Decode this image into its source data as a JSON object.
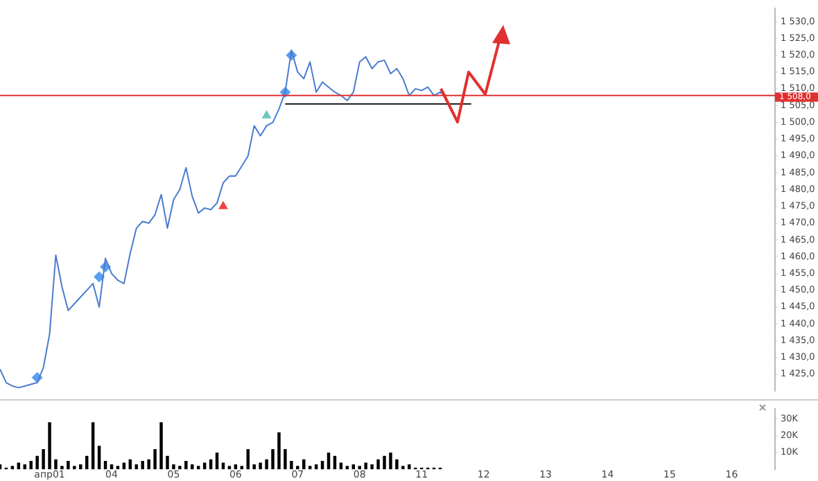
{
  "chart_data": [
    {
      "type": "line",
      "tick_labels": "y",
      "ylim": [
        1420,
        1534
      ],
      "yticks": [
        {
          "value": 1425,
          "label": "1 425,0"
        },
        {
          "value": 1430,
          "label": "1 430,0"
        },
        {
          "value": 1435,
          "label": "1 435,0"
        },
        {
          "value": 1440,
          "label": "1 440,0"
        },
        {
          "value": 1445,
          "label": "1 445,0"
        },
        {
          "value": 1450,
          "label": "1 450,0"
        },
        {
          "value": 1455,
          "label": "1 455,0"
        },
        {
          "value": 1460,
          "label": "1 460,0"
        },
        {
          "value": 1465,
          "label": "1 465,0"
        },
        {
          "value": 1470,
          "label": "1 470,0"
        },
        {
          "value": 1475,
          "label": "1 475,0"
        },
        {
          "value": 1480,
          "label": "1 480,0"
        },
        {
          "value": 1485,
          "label": "1 485,0"
        },
        {
          "value": 1490,
          "label": "1 490,0"
        },
        {
          "value": 1495,
          "label": "1 495,0"
        },
        {
          "value": 1500,
          "label": "1 500,0"
        },
        {
          "value": 1505,
          "label": "1 505,0"
        },
        {
          "value": 1510,
          "label": "1 510,0"
        },
        {
          "value": 1515,
          "label": "1 515,0"
        },
        {
          "value": 1520,
          "label": "1 520,0"
        },
        {
          "value": 1525,
          "label": "1 525,0"
        },
        {
          "value": 1530,
          "label": "1 530,0"
        }
      ],
      "series": [
        {
          "color": "#4a7bd0",
          "values": [
            1426.5,
            1422.5,
            1421.5,
            1421,
            1421.5,
            1422,
            1422.5,
            1427,
            1437,
            1460.5,
            1451,
            1444,
            1446,
            1448,
            1450,
            1452,
            1445,
            1459.5,
            1455,
            1453,
            1452,
            1461,
            1468.5,
            1470.5,
            1470,
            1472.5,
            1478.5,
            1468.5,
            1477,
            1480,
            1486.5,
            1478,
            1473,
            1474.5,
            1474,
            1476,
            1482,
            1484,
            1484,
            1487,
            1490,
            1499,
            1496,
            1499,
            1500,
            1504,
            1509,
            1521.5,
            1515,
            1513,
            1518,
            1509,
            1512,
            1510.5,
            1509,
            1508,
            1506.5,
            1509,
            1518,
            1519.5,
            1516,
            1518,
            1518.5,
            1514.5,
            1516,
            1513,
            1508,
            1510,
            1509.5,
            1510.5,
            1508,
            1509,
            1508,
            null,
            null,
            null,
            null,
            null,
            null,
            null,
            null,
            null,
            null,
            null,
            null,
            null,
            null,
            null,
            null,
            null,
            null,
            null,
            null,
            null,
            null,
            null,
            null,
            null,
            null,
            null,
            null,
            null,
            null,
            null,
            null,
            null,
            null,
            null,
            null,
            null,
            null,
            null,
            null,
            null,
            null,
            null,
            null,
            null,
            null,
            null,
            null,
            null,
            null,
            null,
            null,
            null
          ]
        },
        {
          "color": "#222222",
          "values": [
            null,
            null,
            null,
            null,
            null,
            null,
            null,
            null,
            null,
            null,
            null,
            null,
            null,
            null,
            null,
            null,
            null,
            null,
            null,
            null,
            null,
            null,
            null,
            null,
            null,
            null,
            null,
            null,
            null,
            null,
            null,
            null,
            null,
            null,
            null,
            null,
            null,
            null,
            null,
            null,
            null,
            null,
            null,
            null,
            null,
            null,
            1505.5,
            1505.5,
            1505.5,
            1505.5,
            1505.5,
            1505.5,
            1505.5,
            1505.5,
            1505.5,
            1505.5,
            1505.5,
            1505.5,
            1505.5,
            1505.5,
            1505.5,
            1505.5,
            1505.5,
            1505.5,
            1505.5,
            1505.5,
            1505.5,
            1505.5,
            1505.5,
            1505.5,
            1505.5,
            1505.5,
            1505.5,
            1505.5,
            1505.5,
            1505.5,
            1505.5,
            null,
            null,
            null,
            null,
            null,
            null,
            null,
            null,
            null,
            null,
            null,
            null,
            null,
            null,
            null,
            null,
            null,
            null,
            null,
            null,
            null,
            null,
            null,
            null,
            null,
            null,
            null,
            null,
            null,
            null,
            null,
            null,
            null,
            null,
            null,
            null,
            null,
            null,
            null,
            null,
            null,
            null,
            null,
            null,
            null,
            null,
            null,
            null,
            null
          ]
        },
        {
          "type": "scatter",
          "marker": "diamond",
          "color": "#5aa0f0",
          "values": [
            null,
            null,
            null,
            null,
            null,
            null,
            1424,
            null,
            null,
            null,
            null,
            null,
            null,
            null,
            null,
            null,
            1454,
            1457,
            null,
            null,
            null,
            null,
            null,
            null,
            null,
            null,
            null,
            null,
            null,
            null,
            null,
            null,
            null,
            null,
            null,
            null,
            null,
            null,
            null,
            null,
            null,
            null,
            null,
            null,
            null,
            null,
            1509,
            1520,
            null,
            null,
            null,
            null,
            null,
            null,
            null,
            null,
            null,
            null,
            null,
            null,
            null,
            null,
            null,
            null,
            null,
            null,
            null,
            null,
            null,
            null,
            null,
            null,
            null,
            null,
            null,
            null,
            null,
            null,
            null,
            null,
            null,
            null,
            null,
            null,
            null,
            null,
            null,
            null,
            null,
            null,
            null,
            null,
            null,
            null,
            null,
            null,
            null,
            null,
            null,
            null,
            null,
            null,
            null,
            null,
            null,
            null,
            null,
            null,
            null,
            null,
            null,
            null,
            null,
            null,
            null,
            null,
            null,
            null,
            null,
            null,
            null,
            null,
            null,
            null,
            null,
            null
          ]
        },
        {
          "type": "scatter",
          "marker": "triangle",
          "color": "#ee4444",
          "values": [
            null,
            null,
            null,
            null,
            null,
            null,
            null,
            null,
            null,
            null,
            null,
            null,
            null,
            null,
            null,
            null,
            null,
            null,
            null,
            null,
            null,
            null,
            null,
            null,
            null,
            null,
            null,
            null,
            null,
            null,
            null,
            null,
            null,
            null,
            null,
            null,
            1475,
            null,
            null,
            null,
            null,
            null,
            null,
            null,
            null,
            null,
            null,
            null,
            null,
            null,
            null,
            null,
            null,
            null,
            null,
            null,
            null,
            null,
            null,
            null,
            null,
            null,
            null,
            null,
            null,
            null,
            null,
            null,
            null,
            null,
            null,
            null,
            null,
            null,
            null,
            null,
            null,
            null,
            null,
            null,
            null,
            null,
            null,
            null,
            null,
            null,
            null,
            null,
            null,
            null,
            null,
            null,
            null,
            null,
            null,
            null,
            null,
            null,
            null,
            null,
            null,
            null,
            null,
            null,
            null,
            null,
            null,
            null,
            null,
            null,
            null,
            null,
            null,
            null,
            null,
            null,
            null,
            null,
            null,
            null,
            null,
            null,
            null,
            null,
            null,
            null
          ]
        },
        {
          "type": "scatter",
          "marker": "triangle",
          "color": "#6cc8c0",
          "values": [
            null,
            null,
            null,
            null,
            null,
            null,
            null,
            null,
            null,
            null,
            null,
            null,
            null,
            null,
            null,
            null,
            null,
            null,
            null,
            null,
            null,
            null,
            null,
            null,
            null,
            null,
            null,
            null,
            null,
            null,
            null,
            null,
            null,
            null,
            null,
            null,
            null,
            null,
            null,
            null,
            null,
            null,
            null,
            1502,
            null,
            null,
            null,
            null,
            null,
            null,
            null,
            null,
            null,
            null,
            null,
            null,
            null,
            null,
            null,
            null,
            null,
            null,
            null,
            null,
            null,
            null,
            null,
            null,
            null,
            null,
            null,
            null,
            null,
            null,
            null,
            null,
            null,
            null,
            null,
            null,
            null,
            null,
            null,
            null,
            null,
            null,
            null,
            null,
            null,
            null,
            null,
            null,
            null,
            null,
            null,
            null,
            null,
            null,
            null,
            null,
            null,
            null,
            null,
            null,
            null,
            null,
            null,
            null,
            null,
            null,
            null,
            null,
            null,
            null,
            null,
            null,
            null,
            null,
            null,
            null,
            null,
            null,
            null,
            null,
            null,
            null
          ]
        }
      ],
      "ref_lines": [
        {
          "axis": "y",
          "value": 1508,
          "label": "1 508,0",
          "color": "#e03030"
        }
      ]
    },
    {
      "type": "bar",
      "ylim": [
        0,
        36000
      ],
      "categories": [
        null,
        null,
        null,
        null,
        null,
        null,
        null,
        null,
        "апр01",
        null,
        null,
        null,
        null,
        null,
        null,
        null,
        null,
        null,
        "04",
        null,
        null,
        null,
        null,
        null,
        null,
        null,
        null,
        null,
        "05",
        null,
        null,
        null,
        null,
        null,
        null,
        null,
        null,
        null,
        "06",
        null,
        null,
        null,
        null,
        null,
        null,
        null,
        null,
        null,
        "07",
        null,
        null,
        null,
        null,
        null,
        null,
        null,
        null,
        null,
        "08",
        null,
        null,
        null,
        null,
        null,
        null,
        null,
        null,
        null,
        "11",
        null,
        null,
        null,
        null,
        null,
        null,
        null,
        null,
        null,
        "12",
        null,
        null,
        null,
        null,
        null,
        null,
        null,
        null,
        null,
        "13",
        null,
        null,
        null,
        null,
        null,
        null,
        null,
        null,
        null,
        "14",
        null,
        null,
        null,
        null,
        null,
        null,
        null,
        null,
        null,
        "15",
        null,
        null,
        null,
        null,
        null,
        null,
        null,
        null,
        null,
        "16",
        null,
        null,
        null,
        null,
        null,
        null,
        null
      ],
      "yticks": [
        {
          "value": 10000,
          "label": "10K"
        },
        {
          "value": 20000,
          "label": "20K"
        },
        {
          "value": 30000,
          "label": "30K"
        }
      ],
      "series": [
        {
          "color": "#000000",
          "values": [
            3000,
            1000,
            2000,
            4000,
            3000,
            5000,
            8000,
            12000,
            28000,
            6000,
            2000,
            5000,
            2000,
            3000,
            8000,
            28000,
            14000,
            5000,
            3000,
            2000,
            4000,
            6000,
            3000,
            5000,
            6000,
            12000,
            28000,
            8000,
            3000,
            2000,
            5000,
            3000,
            2000,
            4000,
            6000,
            10000,
            4000,
            2000,
            3000,
            2000,
            12000,
            3000,
            4000,
            6000,
            12000,
            22000,
            12000,
            5000,
            2000,
            6000,
            2000,
            3000,
            5000,
            10000,
            8000,
            4000,
            2000,
            3000,
            2000,
            4000,
            3000,
            6000,
            8000,
            10000,
            6000,
            2000,
            3000,
            1000,
            1000,
            1000,
            1000,
            1000,
            null,
            null,
            null,
            null,
            null,
            null,
            null,
            null,
            null,
            null,
            null,
            null,
            null,
            null,
            null,
            null,
            null,
            null,
            null,
            null,
            null,
            null,
            null,
            null,
            null,
            null,
            null,
            null,
            null,
            null,
            null,
            null,
            null,
            null,
            null,
            null,
            null,
            null,
            null,
            null,
            null,
            null,
            null,
            null,
            null,
            null,
            null,
            null,
            null,
            null,
            null,
            null,
            null,
            null
          ]
        }
      ]
    }
  ]
}
